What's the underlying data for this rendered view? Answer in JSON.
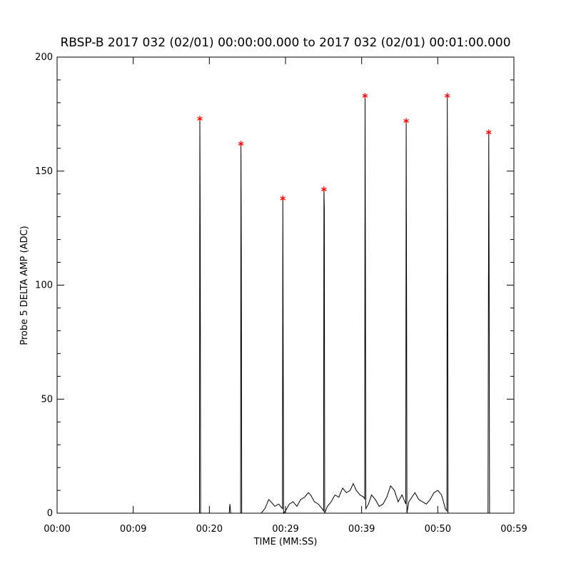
{
  "chart_data": {
    "type": "line",
    "title": "RBSP-B 2017 032 (02/01) 00:00:00.000 to 2017 032 (02/01) 00:01:00.000",
    "x_label": "TIME (MM:SS)",
    "y_label": "Probe 5 DELTA AMP (ADC)",
    "xlim": [
      0,
      60
    ],
    "ylim": [
      0,
      200
    ],
    "xticks": [
      {
        "value": 0,
        "label": "00:00"
      },
      {
        "value": 10,
        "label": "00:09"
      },
      {
        "value": 20,
        "label": "00:20"
      },
      {
        "value": 30,
        "label": "00:29"
      },
      {
        "value": 40,
        "label": "00:39"
      },
      {
        "value": 50,
        "label": "00:50"
      },
      {
        "value": 60,
        "label": "00:59"
      }
    ],
    "yticks": [
      0,
      50,
      100,
      150,
      200
    ],
    "yminor": [
      10,
      20,
      30,
      40,
      60,
      70,
      80,
      90,
      110,
      120,
      130,
      140,
      160,
      170,
      180,
      190
    ],
    "grid": false,
    "series": [
      {
        "color": "#000000",
        "marker": "none",
        "x": [
          0,
          18.7,
          18.75,
          18.8,
          18.85,
          22.6,
          22.7,
          22.8,
          24.1,
          24.15,
          24.2,
          24.25,
          26.8,
          27.3,
          27.8,
          28.1,
          28.6,
          29.1,
          29.6,
          29.65,
          29.7,
          29.75,
          30.0,
          30.5,
          31.0,
          31.5,
          32.0,
          32.5,
          33.0,
          33.3,
          33.8,
          34.3,
          34.8,
          35.0,
          35.05,
          35.1,
          35.15,
          35.5,
          36.0,
          36.5,
          37.0,
          37.5,
          38.0,
          38.5,
          38.9,
          39.3,
          39.8,
          40.3,
          40.4,
          40.45,
          40.5,
          40.55,
          40.9,
          41.3,
          41.8,
          42.3,
          42.8,
          43.3,
          43.8,
          44.3,
          44.8,
          45.3,
          45.8,
          45.85,
          45.9,
          45.95,
          46.2,
          46.6,
          47.0,
          47.5,
          48.0,
          48.5,
          49.0,
          49.5,
          50.0,
          50.5,
          51.0,
          51.2,
          51.25,
          51.3,
          51.35,
          51.6,
          56.6,
          56.7,
          56.75,
          56.8,
          56.85,
          60
        ],
        "values": [
          0,
          0,
          173,
          121,
          0,
          0,
          4,
          0,
          0,
          162,
          110,
          0,
          0,
          2,
          6,
          5,
          3,
          4,
          2,
          138,
          68,
          0,
          1,
          4,
          5,
          3,
          6,
          7,
          9,
          8,
          5,
          4,
          2,
          1,
          142,
          133,
          0,
          3,
          5,
          8,
          7,
          11,
          9,
          10,
          13,
          10,
          8,
          7,
          6,
          183,
          108,
          2,
          4,
          8,
          6,
          3,
          4,
          7,
          12,
          10,
          5,
          8,
          4,
          172,
          100,
          0,
          5,
          7,
          9,
          6,
          5,
          4,
          6,
          9,
          10,
          8,
          2,
          1,
          183,
          111,
          0,
          0,
          0,
          167,
          99,
          0,
          0,
          0
        ]
      },
      {
        "color": "#ff0000",
        "marker": "star",
        "x": [
          18.75,
          24.15,
          29.65,
          35.05,
          40.45,
          45.85,
          51.25,
          56.7
        ],
        "values": [
          173,
          162,
          138,
          142,
          183,
          172,
          183,
          167
        ]
      }
    ]
  }
}
